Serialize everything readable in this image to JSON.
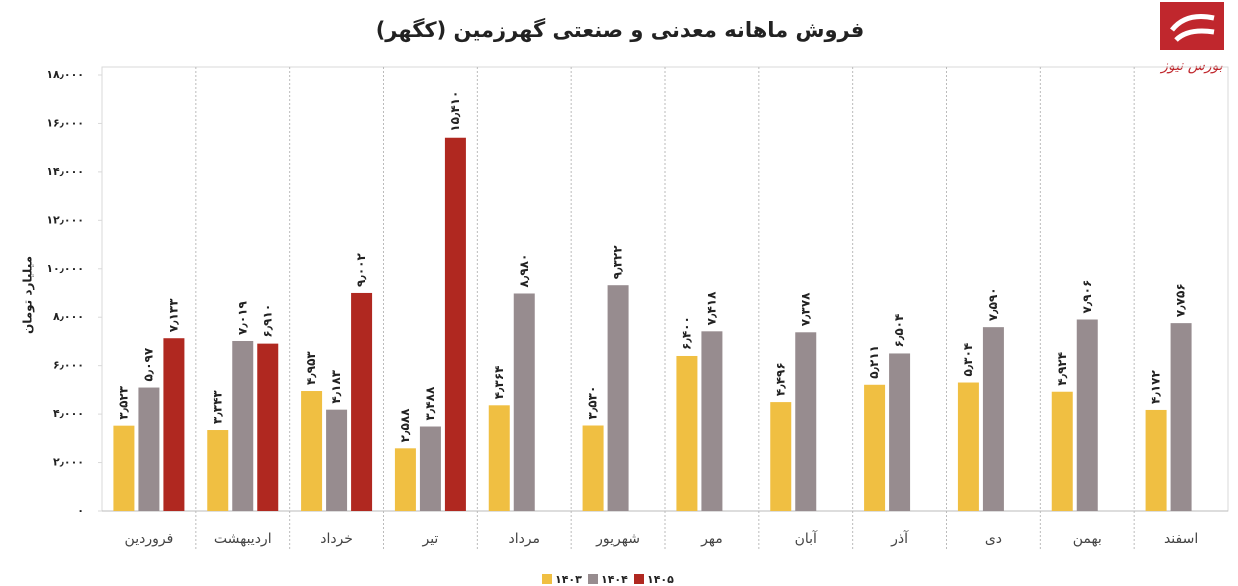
{
  "chart_data": {
    "type": "bar",
    "title": "فروش ماهانه معدنی و صنعتی گهرزمین (کگهر)",
    "logo": "بورس نیوز",
    "y_label": "میلیارد تومان",
    "categories": [
      "فروردین",
      "اردیبهشت",
      "خرداد",
      "تیر",
      "مرداد",
      "شهریور",
      "مهر",
      "آبان",
      "آذر",
      "دی",
      "بهمن",
      "اسفند"
    ],
    "series": [
      {
        "name": "۱۴۰۳",
        "color": "#f0bf42",
        "values": [
          3523,
          3343,
          4953,
          2588,
          4364,
          3530,
          6400,
          4496,
          5211,
          5304,
          4924,
          4172
        ],
        "value_labels": [
          "۳٫۵۲۳",
          "۳٫۳۴۳",
          "۴٫۹۵۳",
          "۲٫۵۸۸",
          "۴٫۳۶۴",
          "۳٫۵۳۰",
          "۶٫۴۰۰",
          "۴٫۴۹۶",
          "۵٫۲۱۱",
          "۵٫۳۰۴",
          "۴٫۹۲۴",
          "۴٫۱۷۲"
        ]
      },
      {
        "name": "۱۴۰۴",
        "color": "#978c8f",
        "values": [
          5097,
          7019,
          4183,
          3488,
          8980,
          9322,
          7418,
          7378,
          6504,
          7590,
          7906,
          7756
        ],
        "value_labels": [
          "۵٫۰۹۷",
          "۷٫۰۱۹",
          "۴٫۱۸۳",
          "۳٫۴۸۸",
          "۸٫۹۸۰",
          "۹٫۳۲۲",
          "۷٫۴۱۸",
          "۷٫۳۷۸",
          "۶٫۵۰۴",
          "۷٫۵۹۰",
          "۷٫۹۰۶",
          "۷٫۷۵۶"
        ]
      },
      {
        "name": "۱۴۰۵",
        "color": "#b02820",
        "values": [
          7133,
          6910,
          9002,
          15410,
          null,
          null,
          null,
          null,
          null,
          null,
          null,
          null
        ],
        "value_labels": [
          "۷٫۱۳۳",
          "۶٫۹۱۰",
          "۹٫۰۰۲",
          "۱۵٫۴۱۰",
          null,
          null,
          null,
          null,
          null,
          null,
          null,
          null
        ]
      }
    ],
    "ylim": [
      0,
      18000
    ],
    "yticks": [
      {
        "value": 0,
        "label": "۰"
      },
      {
        "value": 2000,
        "label": "۲٫۰۰۰"
      },
      {
        "value": 4000,
        "label": "۴٫۰۰۰"
      },
      {
        "value": 6000,
        "label": "۶٫۰۰۰"
      },
      {
        "value": 8000,
        "label": "۸٫۰۰۰"
      },
      {
        "value": 10000,
        "label": "۱۰٫۰۰۰"
      },
      {
        "value": 12000,
        "label": "۱۲٫۰۰۰"
      },
      {
        "value": 14000,
        "label": "۱۴٫۰۰۰"
      },
      {
        "value": 16000,
        "label": "۱۶٫۰۰۰"
      },
      {
        "value": 18000,
        "label": "۱۸٫۰۰۰"
      }
    ]
  }
}
